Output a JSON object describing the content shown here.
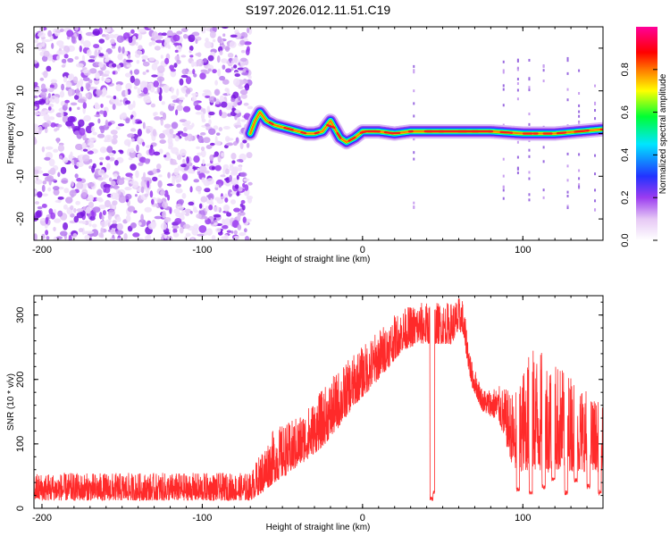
{
  "chart_data": [
    {
      "type": "heatmap",
      "title": "S197.2026.012.11.51.C19",
      "xlabel": "Height of straight line (km)",
      "ylabel": "Frequency (Hz)",
      "xlim": [
        -205,
        150
      ],
      "ylim": [
        -25,
        25
      ],
      "xticks": [
        -200,
        -100,
        0,
        100
      ],
      "yticks": [
        -20,
        -10,
        0,
        10,
        20
      ],
      "colorbar": {
        "label": "Normalized spectral amplitude",
        "range": [
          0,
          1
        ],
        "ticks": [
          0.0,
          0.2,
          0.4,
          0.6,
          0.8
        ],
        "tick_labels": [
          "0.0",
          "0.2",
          "0.4",
          "0.6",
          "0.8"
        ],
        "colors": [
          "#ffffff",
          "#e6c8f5",
          "#9b3cf0",
          "#2233ff",
          "#00e5ff",
          "#00ff33",
          "#ffff00",
          "#ff7700",
          "#ff0000",
          "#ff0099"
        ]
      },
      "noise_region": {
        "x": [
          -205,
          -70
        ],
        "amplitude": "0.1-0.3"
      },
      "ridge": {
        "x": [
          -70,
          -67,
          -64,
          -60,
          -55,
          -50,
          -45,
          -40,
          -35,
          -30,
          -25,
          -20,
          -17,
          -14,
          -10,
          -5,
          0,
          10,
          20,
          30,
          40,
          60,
          80,
          100,
          120,
          150
        ],
        "freq_hz": [
          0,
          3,
          5,
          3,
          2,
          1.5,
          1,
          0.5,
          0,
          0,
          0.5,
          3,
          1,
          -1,
          -2,
          -1,
          0.5,
          0.5,
          0,
          0.5,
          0.5,
          0.5,
          0.5,
          0,
          0,
          1
        ]
      },
      "vertical_streaks_km": [
        32,
        88,
        97,
        104,
        113,
        128,
        135,
        145
      ]
    },
    {
      "type": "line",
      "xlabel": "Height of straight line (km)",
      "ylabel": "SNR (10 * v/v)",
      "xlim": [
        -205,
        150
      ],
      "ylim": [
        0,
        330
      ],
      "xticks": [
        -200,
        -100,
        0,
        100
      ],
      "yticks": [
        0,
        100,
        200,
        300
      ],
      "color": "#ff2a2a",
      "envelope": {
        "x": [
          -205,
          -70,
          -62,
          -55,
          -45,
          -35,
          -25,
          -15,
          -5,
          5,
          15,
          25,
          35,
          45,
          55,
          62,
          68,
          75,
          85,
          95,
          105,
          115,
          125,
          135,
          145,
          150
        ],
        "base": [
          12,
          12,
          25,
          40,
          55,
          75,
          95,
          125,
          160,
          185,
          215,
          245,
          255,
          255,
          255,
          275,
          190,
          150,
          135,
          55,
          60,
          55,
          60,
          55,
          60,
          50
        ],
        "peak": [
          55,
          55,
          95,
          125,
          135,
          155,
          185,
          215,
          240,
          265,
          290,
          310,
          320,
          320,
          320,
          330,
          230,
          185,
          190,
          180,
          250,
          240,
          220,
          200,
          170,
          160
        ]
      },
      "dropouts_km": [
        [
          42,
          44,
          10
        ],
        [
          44,
          45,
          20
        ],
        [
          96,
          98,
          25
        ],
        [
          104,
          106,
          20
        ],
        [
          112,
          114,
          30
        ],
        [
          118,
          120,
          40
        ],
        [
          126,
          128,
          20
        ],
        [
          132,
          134,
          40
        ],
        [
          140,
          142,
          30
        ],
        [
          147,
          149,
          20
        ]
      ]
    }
  ]
}
